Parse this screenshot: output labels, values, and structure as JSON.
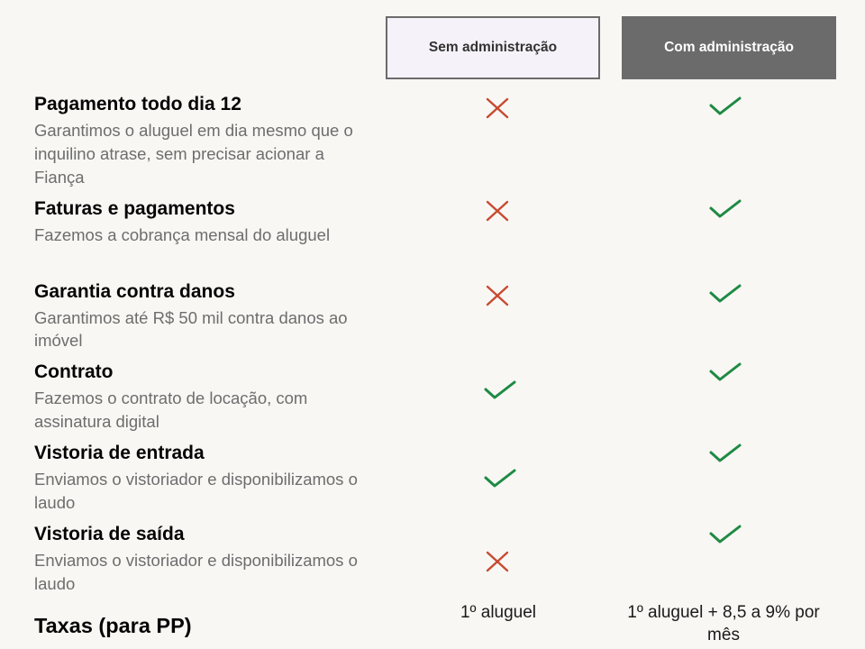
{
  "table": {
    "type": "comparison-table",
    "columns": [
      {
        "label": "Sem administração",
        "bg": "#f5f3f9",
        "fg": "#333333",
        "border": "#6b6b6b"
      },
      {
        "label": "Com administração",
        "bg": "#6b6b6b",
        "fg": "#ffffff",
        "border": "none"
      }
    ],
    "colors": {
      "cross": "#c84a31",
      "check": "#1e8a43",
      "title": "#050505",
      "desc": "#6d6d6d",
      "page_bg": "#f8f7f4"
    },
    "features": [
      {
        "title": "Pagamento todo dia 12",
        "desc": "Garantimos o aluguel em dia mesmo que o inquilino atrase, sem precisar acionar a Fiança",
        "col1": "cross",
        "col2": "check"
      },
      {
        "title": "Faturas e pagamentos",
        "desc": "Fazemos a cobrança mensal do aluguel",
        "col1": "cross",
        "col2": "check"
      },
      {
        "title": "Garantia contra danos",
        "desc": "Garantimos até R$ 50 mil contra danos ao imóvel",
        "col1": "cross",
        "col2": "check"
      },
      {
        "title": "Contrato",
        "desc": "Fazemos o contrato de locação, com assinatura digital",
        "col1": "check",
        "col2": "check"
      },
      {
        "title": "Vistoria de entrada",
        "desc": "Enviamos o vistoriador e disponibilizamos o laudo",
        "col1": "check",
        "col2": "check"
      },
      {
        "title": "Vistoria de saída",
        "desc": "Enviamos o vistoriador e disponibilizamos o laudo",
        "col1": "cross",
        "col2": "check"
      }
    ],
    "footer": {
      "title": "Taxas (para PP)",
      "col1_text": "1º aluguel",
      "col2_text": "1º aluguel + 8,5 a 9% por mês"
    }
  }
}
